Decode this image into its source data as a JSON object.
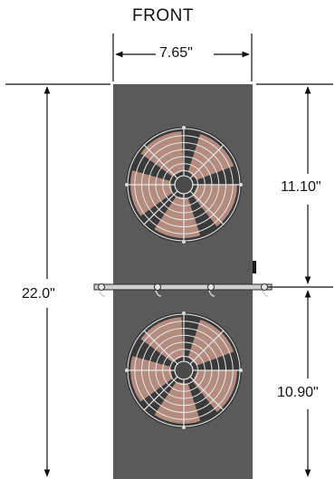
{
  "view_label": "FRONT",
  "dimensions": {
    "width": "7.65\"",
    "overall_height": "22.0\"",
    "upper_section": "11.10\"",
    "lower_section": "10.90\""
  },
  "colors": {
    "housing": "#5a5a5a",
    "dimension_line": "#111111",
    "fan_grille": "#e8e8e8",
    "fan_blade": "#c99a8c",
    "mounting_bar": "#cfcfcf"
  },
  "components": {
    "fan_count": 2,
    "fan_icon": "axial-fan-icon",
    "mount_icon": "mounting-bracket-icon"
  }
}
